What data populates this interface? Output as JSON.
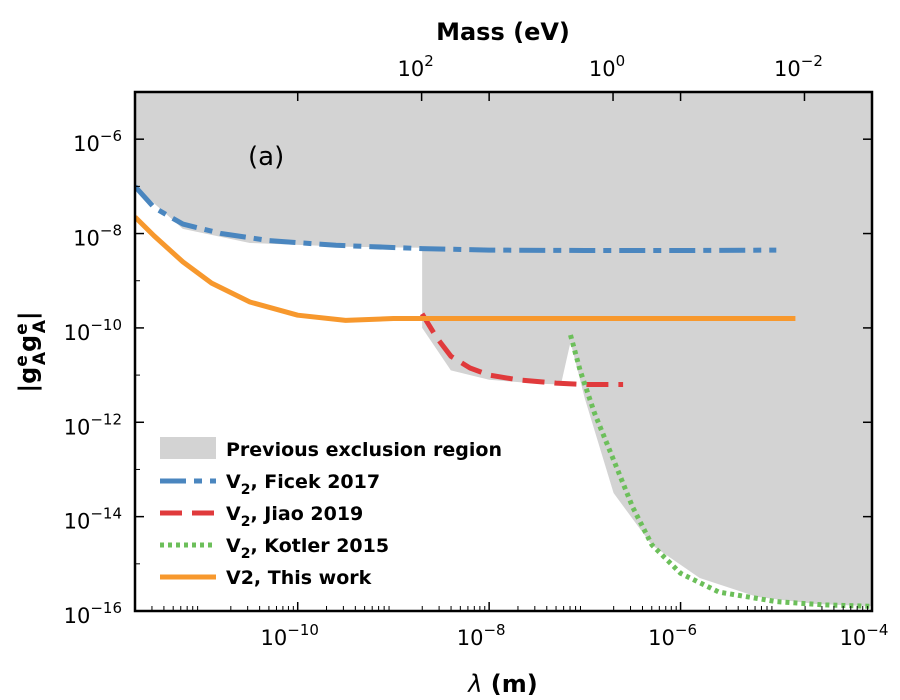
{
  "chart_data": {
    "type": "line",
    "panel_label": "(a)",
    "xlabel": "λ (m)",
    "ylabel": "|g_A^e g_A^e|",
    "top_xlabel": "Mass (eV)",
    "x_scale": "log",
    "y_scale": "log",
    "xlim_log10": [
      -11.7,
      -4
    ],
    "ylim_log10": [
      -16,
      -5
    ],
    "x_ticks": [
      {
        "log": -10,
        "base": "10",
        "exp": "−10"
      },
      {
        "log": -8,
        "base": "10",
        "exp": "−8"
      },
      {
        "log": -6,
        "base": "10",
        "exp": "−6"
      },
      {
        "log": -4,
        "base": "10",
        "exp": "−4"
      }
    ],
    "y_ticks": [
      {
        "log": -6,
        "base": "10",
        "exp": "−6"
      },
      {
        "log": -8,
        "base": "10",
        "exp": "−8"
      },
      {
        "log": -10,
        "base": "10",
        "exp": "−10"
      },
      {
        "log": -12,
        "base": "10",
        "exp": "−12"
      },
      {
        "log": -14,
        "base": "10",
        "exp": "−14"
      },
      {
        "log": -16,
        "base": "10",
        "exp": "−16"
      }
    ],
    "top_ticks": [
      {
        "mass_log10": 2,
        "base": "10",
        "exp": "2"
      },
      {
        "mass_log10": 0,
        "base": "10",
        "exp": "0"
      },
      {
        "mass_log10": -2,
        "base": "10",
        "exp": "−2"
      }
    ],
    "mass_conversion": "lambda_m = 1.97e-7 / mass_eV",
    "exclusion_region": {
      "name": "Previous exclusion region",
      "color": "#d3d3d3",
      "boundary": [
        [
          -11.7,
          -7.0
        ],
        [
          -11.2,
          -7.9
        ],
        [
          -10.5,
          -8.2
        ],
        [
          -9.5,
          -8.28
        ],
        [
          -8.7,
          -8.3
        ],
        [
          -8.7,
          -10.0
        ],
        [
          -8.4,
          -10.9
        ],
        [
          -8.0,
          -11.1
        ],
        [
          -7.5,
          -11.18
        ],
        [
          -7.25,
          -11.2
        ],
        [
          -7.15,
          -10.3
        ],
        [
          -7.0,
          -11.5
        ],
        [
          -6.7,
          -13.5
        ],
        [
          -6.3,
          -14.6
        ],
        [
          -5.8,
          -15.3
        ],
        [
          -5.2,
          -15.7
        ],
        [
          -4.6,
          -15.85
        ],
        [
          -4.0,
          -15.9
        ]
      ]
    },
    "series": [
      {
        "name": "V₂, Ficek 2017",
        "color": "#4a86bf",
        "style": "dashdot",
        "points": [
          [
            -11.7,
            -7.0
          ],
          [
            -11.5,
            -7.45
          ],
          [
            -11.2,
            -7.8
          ],
          [
            -10.8,
            -8.0
          ],
          [
            -10.3,
            -8.15
          ],
          [
            -9.6,
            -8.25
          ],
          [
            -8.7,
            -8.32
          ],
          [
            -8.0,
            -8.35
          ],
          [
            -7.0,
            -8.36
          ],
          [
            -6.0,
            -8.36
          ],
          [
            -5.0,
            -8.35
          ]
        ]
      },
      {
        "name": "V₂, Jiao 2019",
        "color": "#e03a3c",
        "style": "dashed",
        "points": [
          [
            -8.7,
            -9.7
          ],
          [
            -8.55,
            -10.2
          ],
          [
            -8.4,
            -10.6
          ],
          [
            -8.2,
            -10.85
          ],
          [
            -8.0,
            -11.0
          ],
          [
            -7.7,
            -11.1
          ],
          [
            -7.3,
            -11.17
          ],
          [
            -7.0,
            -11.2
          ],
          [
            -6.6,
            -11.2
          ]
        ]
      },
      {
        "name": "V₂, Kotler 2015",
        "color": "#6cbf5a",
        "style": "dotted",
        "points": [
          [
            -7.15,
            -10.15
          ],
          [
            -7.05,
            -10.9
          ],
          [
            -6.9,
            -11.8
          ],
          [
            -6.7,
            -12.8
          ],
          [
            -6.5,
            -13.8
          ],
          [
            -6.3,
            -14.6
          ],
          [
            -6.0,
            -15.2
          ],
          [
            -5.6,
            -15.6
          ],
          [
            -5.0,
            -15.8
          ],
          [
            -4.5,
            -15.87
          ],
          [
            -4.0,
            -15.9
          ]
        ]
      },
      {
        "name": "V2, This work",
        "color": "#f7982d",
        "style": "solid",
        "points": [
          [
            -11.7,
            -7.65
          ],
          [
            -11.5,
            -8.05
          ],
          [
            -11.2,
            -8.6
          ],
          [
            -10.9,
            -9.05
          ],
          [
            -10.5,
            -9.45
          ],
          [
            -10.0,
            -9.73
          ],
          [
            -9.5,
            -9.84
          ],
          [
            -9.0,
            -9.8
          ],
          [
            -8.7,
            -9.8
          ],
          [
            -7.0,
            -9.8
          ],
          [
            -6.0,
            -9.8
          ],
          [
            -4.8,
            -9.8
          ]
        ]
      }
    ],
    "legend_position": "lower-left"
  }
}
